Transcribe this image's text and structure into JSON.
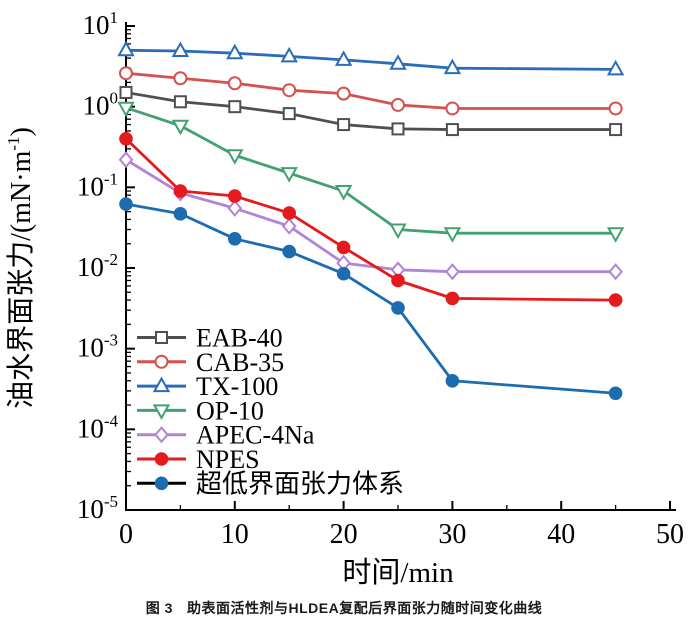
{
  "figure": {
    "caption_prefix": "图 3",
    "caption": "助表面活性剂与HLDEA复配后界面张力随时间变化曲线"
  },
  "chart_data": {
    "type": "line",
    "title": "",
    "xlabel": "时间/min",
    "ylabel": "油水界面张力/(mN·m⁻¹)",
    "ylabel_parts": {
      "base": "油水界面张力/(mN·m",
      "sup": "-1",
      "suffix": ")"
    },
    "x_axis": {
      "min": 0,
      "max": 50,
      "major_ticks": [
        0,
        10,
        20,
        30,
        40,
        50
      ],
      "minor_ticks": [
        5,
        15,
        25,
        35,
        45
      ]
    },
    "y_axis": {
      "scale": "log",
      "min": 1e-05,
      "max": 10,
      "tick_base": "10",
      "tick_exponents": [
        1,
        0,
        -1,
        -2,
        -3,
        -4,
        -5
      ]
    },
    "grid": false,
    "legend_position": "lower-left",
    "x": [
      0,
      5,
      10,
      15,
      20,
      25,
      30,
      45
    ],
    "series": [
      {
        "name": "EAB-40",
        "marker": "square-open",
        "color": "#4f4f4f",
        "values": [
          1.5,
          1.15,
          1.0,
          0.82,
          0.6,
          0.53,
          0.52,
          0.52
        ]
      },
      {
        "name": "CAB-35",
        "marker": "circle-open",
        "color": "#d5514e",
        "values": [
          2.6,
          2.25,
          1.95,
          1.6,
          1.45,
          1.05,
          0.95,
          0.95
        ]
      },
      {
        "name": "TX-100",
        "marker": "triangle-up-open",
        "color": "#2a6db6",
        "values": [
          5.0,
          4.9,
          4.6,
          4.2,
          3.8,
          3.4,
          3.0,
          2.9
        ]
      },
      {
        "name": "OP-10",
        "marker": "triangle-down-open",
        "color": "#43a170",
        "values": [
          0.97,
          0.58,
          0.25,
          0.15,
          0.09,
          0.03,
          0.027,
          0.027
        ]
      },
      {
        "name": "APEC-4Na",
        "marker": "diamond-open",
        "color": "#b085d6",
        "values": [
          0.22,
          0.085,
          0.055,
          0.033,
          0.0115,
          0.0095,
          0.009,
          0.009
        ]
      },
      {
        "name": "NPES",
        "marker": "circle-filled",
        "color": "#e41a1c",
        "values": [
          0.4,
          0.09,
          0.078,
          0.048,
          0.018,
          0.007,
          0.0042,
          0.004
        ]
      },
      {
        "name": "超低界面张力体系",
        "marker": "circle-filled",
        "color": "#1b6cb0",
        "legend_line_color": "#000000",
        "values": [
          0.062,
          0.047,
          0.023,
          0.016,
          0.0085,
          0.0032,
          0.0004,
          0.00028
        ]
      }
    ]
  }
}
